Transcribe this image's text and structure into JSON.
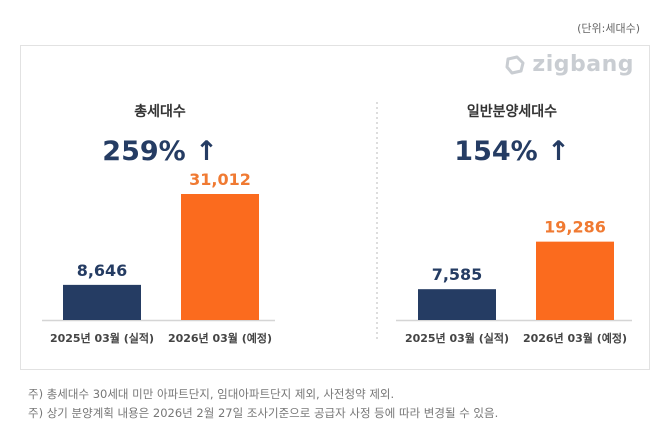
{
  "unit_label": "(단위:세대수)",
  "logo_text": "zigbang",
  "colors": {
    "navy": "#253c63",
    "orange": "#fb6b1e",
    "navy_text": "#253c63",
    "orange_text": "#f07a32"
  },
  "chart_data": [
    {
      "type": "bar",
      "title": "총세대수",
      "change": "259% ↑",
      "categories": [
        "2025년 03월 (실적)",
        "2026년 03월 (예정)"
      ],
      "values": [
        8646,
        31012
      ],
      "value_labels": [
        "8,646",
        "31,012"
      ]
    },
    {
      "type": "bar",
      "title": "일반분양세대수",
      "change": "154% ↑",
      "categories": [
        "2025년 03월 (실적)",
        "2026년 03월 (예정)"
      ],
      "values": [
        7585,
        19286
      ],
      "value_labels": [
        "7,585",
        "19,286"
      ]
    }
  ],
  "footnotes": [
    "주) 총세대수 30세대 미만 아파트단지, 임대아파트단지 제외, 사전청약 제외.",
    "주) 상기 분양계획 내용은 2026년 2월 27일 조사기준으로 공급자 사정 등에 따라 변경될 수 있음."
  ]
}
